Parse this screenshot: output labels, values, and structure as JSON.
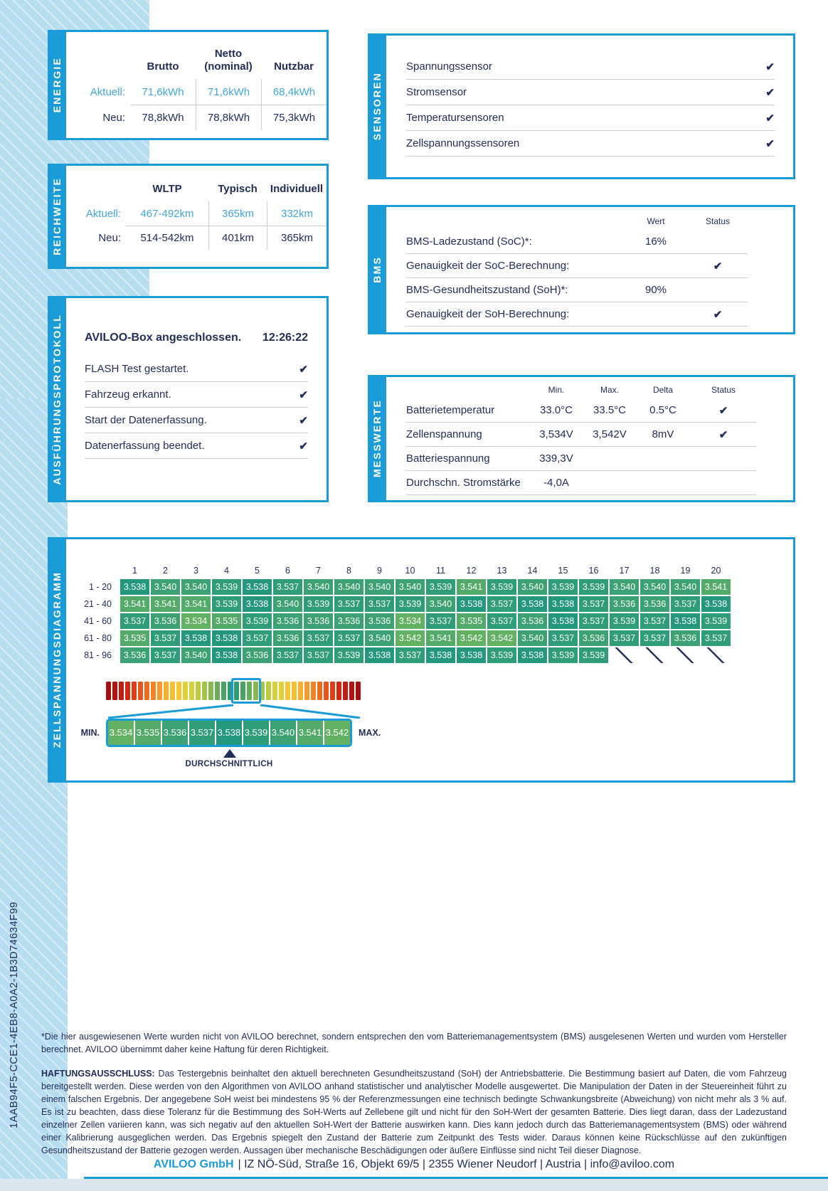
{
  "colors": {
    "accent": "#1a9cd8",
    "navy": "#212e5c",
    "light_blue_text": "#41a7db",
    "band": "#b7ddf1",
    "line_gray": "#c8cdd5",
    "value_colors": {
      "3.534": "#63b163",
      "3.535": "#54ab69",
      "3.536": "#3ca273",
      "3.537": "#2f9d78",
      "3.538": "#23987d",
      "3.539": "#2f9d78",
      "3.540": "#3ca273",
      "3.541": "#54ab69",
      "3.542": "#63b163"
    }
  },
  "icons": {
    "check": "✔"
  },
  "energie": {
    "label": "ENERGIE",
    "columns": [
      "Brutto",
      "Netto (nominal)",
      "Nutzbar"
    ],
    "rows": [
      {
        "label": "Aktuell:",
        "values": [
          "71,6kWh",
          "71,6kWh",
          "68,4kWh"
        ]
      },
      {
        "label": "Neu:",
        "values": [
          "78,8kWh",
          "78,8kWh",
          "75,3kWh"
        ]
      }
    ]
  },
  "reichweite": {
    "label": "REICHWEITE",
    "columns": [
      "WLTP",
      "Typisch",
      "Individuell"
    ],
    "rows": [
      {
        "label": "Aktuell:",
        "values": [
          "467-492km",
          "365km",
          "332km"
        ]
      },
      {
        "label": "Neu:",
        "values": [
          "514-542km",
          "401km",
          "365km"
        ]
      }
    ]
  },
  "protokoll": {
    "label": "AUSFÜHRUNGSPROTOKOLL",
    "header_text": "AVILOO-Box angeschlossen.",
    "header_time": "12:26:22",
    "items": [
      "FLASH Test gestartet.",
      "Fahrzeug erkannt.",
      "Start der Datenerfassung.",
      "Datenerfassung beendet."
    ]
  },
  "sensoren": {
    "label": "SENSOREN",
    "items": [
      "Spannungssensor",
      "Stromsensor",
      "Temperatursensoren",
      "Zellspannungssensoren"
    ]
  },
  "bms": {
    "label": "BMS",
    "headers": [
      "Wert",
      "Status"
    ],
    "rows": [
      {
        "label": "BMS-Ladezustand (SoC)*:",
        "wert": "16%",
        "check": false
      },
      {
        "label": "Genauigkeit der SoC-Berechnung:",
        "wert": "",
        "check": true
      },
      {
        "label": "BMS-Gesundheitszustand (SoH)*:",
        "wert": "90%",
        "check": false
      },
      {
        "label": "Genauigkeit der SoH-Berechnung:",
        "wert": "",
        "check": true
      }
    ]
  },
  "messwerte": {
    "label": "MESSWERTE",
    "headers": [
      "Min.",
      "Max.",
      "Delta",
      "Status"
    ],
    "rows": [
      {
        "label": "Batterietemperatur",
        "min": "33.0°C",
        "max": "33.5°C",
        "delta": "0.5°C",
        "check": true
      },
      {
        "label": "Zellenspannung",
        "min": "3,534V",
        "max": "3,542V",
        "delta": "8mV",
        "check": true
      },
      {
        "label": "Batteriespannung",
        "min": "339,3V",
        "max": "",
        "delta": "",
        "check": false
      },
      {
        "label": "Durchschn. Stromstärke",
        "min": "-4,0A",
        "max": "",
        "delta": "",
        "check": false
      }
    ]
  },
  "diagramm": {
    "label": "ZELLSPANNUNGSDIAGRAMM",
    "col_headers": [
      1,
      2,
      3,
      4,
      5,
      6,
      7,
      8,
      9,
      10,
      11,
      12,
      13,
      14,
      15,
      16,
      17,
      18,
      19,
      20
    ],
    "row_labels": [
      "1 - 20",
      "21 - 40",
      "41 - 60",
      "61 - 80",
      "81 - 96"
    ],
    "values": [
      [
        "3.538",
        "3.540",
        "3.540",
        "3.539",
        "3.538",
        "3.537",
        "3.540",
        "3.540",
        "3.540",
        "3.540",
        "3.539",
        "3.541",
        "3.539",
        "3.540",
        "3.539",
        "3.539",
        "3.540",
        "3.540",
        "3.540",
        "3.541"
      ],
      [
        "3.541",
        "3.541",
        "3.541",
        "3.539",
        "3.538",
        "3.540",
        "3.539",
        "3.537",
        "3.537",
        "3.539",
        "3.540",
        "3.538",
        "3.537",
        "3.538",
        "3.538",
        "3.537",
        "3.536",
        "3.536",
        "3.537",
        "3.538"
      ],
      [
        "3.537",
        "3.536",
        "3.534",
        "3.535",
        "3.539",
        "3.536",
        "3.536",
        "3.536",
        "3.536",
        "3.534",
        "3.537",
        "3.535",
        "3.537",
        "3.536",
        "3.538",
        "3.537",
        "3.539",
        "3.537",
        "3.538",
        "3.539"
      ],
      [
        "3.535",
        "3.537",
        "3.538",
        "3.538",
        "3.537",
        "3.536",
        "3.537",
        "3.537",
        "3.540",
        "3.542",
        "3.541",
        "3.542",
        "3.542",
        "3.540",
        "3.537",
        "3.536",
        "3.537",
        "3.537",
        "3.536",
        "3.537"
      ],
      [
        "3.536",
        "3.537",
        "3.540",
        "3.538",
        "3.536",
        "3.537",
        "3.537",
        "3.539",
        "3.538",
        "3.537",
        "3.538",
        "3.538",
        "3.539",
        "3.538",
        "3.539",
        "3.539",
        null,
        null,
        null,
        null
      ]
    ],
    "gradient_colors": [
      "#a50f0f",
      "#b51311",
      "#c31c12",
      "#d02a14",
      "#dc3e16",
      "#e6551a",
      "#ee6c1f",
      "#f38424",
      "#f79a29",
      "#f9ad2d",
      "#f8bd30",
      "#f2c933",
      "#e5cf37",
      "#d2d03b",
      "#bbcc41",
      "#a2c447",
      "#87ba4e",
      "#68ae58",
      "#48a465",
      "#2f9d73",
      "#2f9d73",
      "#48a465",
      "#68ae58",
      "#87ba4e",
      "#a2c447",
      "#bbcc41",
      "#d2d03b",
      "#e5cf37",
      "#f2c933",
      "#f8bd30",
      "#f9ad2d",
      "#f79a29",
      "#f38424",
      "#ee6c1f",
      "#e6551a",
      "#dc3e16",
      "#d02a14",
      "#c31c12",
      "#b51311",
      "#a50f0f"
    ],
    "scale": {
      "min_label": "MIN.",
      "max_label": "MAX.",
      "values": [
        "3.534",
        "3.535",
        "3.536",
        "3.537",
        "3.538",
        "3.539",
        "3.540",
        "3.541",
        "3.542"
      ],
      "avg_index": 4,
      "avg_label": "DURCHSCHNITTLICH"
    }
  },
  "footer": {
    "test_id": "1AAB94F5-CCE1-4EB8-A0A2-1B3D74634F99",
    "note": "*Die hier ausgewiesenen Werte wurden nicht von AVILOO berechnet, sondern entsprechen den vom Batteriemanagementsystem (BMS) ausgelesenen Werten und wurden vom Hersteller berechnet. AVILOO übernimmt daher keine Haftung für deren Richtigkeit.",
    "disclaimer_label": "HAFTUNGSAUSSCHLUSS:",
    "disclaimer": "Das Testergebnis beinhaltet den aktuell berechneten Gesundheitszustand (SoH) der Antriebsbatterie. Die Bestimmung basiert auf Daten, die vom Fahrzeug bereitgestellt werden. Diese werden von den Algorithmen von AVILOO anhand statistischer und analytischer Modelle ausgewertet. Die Manipulation der Daten in der Steuereinheit führt zu einem falschen Ergebnis. Der angegebene SoH weist bei mindestens 95 % der Referenzmessungen eine technisch bedingte Schwankungsbreite (Abweichung) von nicht mehr als 3 % auf. Es ist zu beachten, dass diese Toleranz für die Bestimmung des SoH-Werts auf Zellebene gilt und nicht für den SoH-Wert der gesamten Batterie. Dies liegt daran, dass der Ladezustand einzelner Zellen variieren kann, was sich negativ auf den aktuellen SoH-Wert der Batterie auswirken kann. Dies kann jedoch durch das Batteriemanagementsystem (BMS) oder während einer Kalibrierung ausgeglichen werden. Das Ergebnis spiegelt den Zustand der Batterie zum Zeitpunkt des Tests wider. Daraus können keine Rückschlüsse auf den zukünftigen Gesundheitszustand der Batterie gezogen werden. Aussagen über mechanische Beschädigungen oder äußere Einflüsse sind nicht Teil dieser Diagnose.",
    "company_name": "AVILOO GmbH",
    "company_rest": "| IZ NÖ-Süd, Straße 16, Objekt 69/5 | 2355 Wiener Neudorf | Austria | info@aviloo.com"
  }
}
